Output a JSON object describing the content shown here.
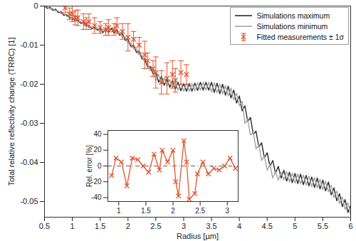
{
  "chart_data": [
    {
      "type": "line",
      "xlabel": "Radius [µm]",
      "ylabel": "Total relative reflectivity change (TRRC) [1]",
      "xlim": [
        0.5,
        6
      ],
      "xticks": [
        0.5,
        1,
        1.5,
        2,
        2.5,
        3,
        3.5,
        4,
        4.5,
        5,
        5.5,
        6
      ],
      "ylim": [
        -0.054,
        0
      ],
      "yticks": [
        -0.05,
        -0.04,
        -0.03,
        -0.02,
        -0.01,
        0
      ],
      "legend": "top-right",
      "x": [
        0.5,
        0.55,
        0.6,
        0.65,
        0.7,
        0.75,
        0.8,
        0.85,
        0.9,
        0.95,
        1.0,
        1.05,
        1.1,
        1.15,
        1.2,
        1.25,
        1.3,
        1.35,
        1.4,
        1.45,
        1.5,
        1.55,
        1.6,
        1.65,
        1.7,
        1.75,
        1.8,
        1.85,
        1.9,
        1.95,
        2.0,
        2.05,
        2.1,
        2.15,
        2.2,
        2.25,
        2.3,
        2.35,
        2.4,
        2.45,
        2.5,
        2.55,
        2.6,
        2.65,
        2.7,
        2.75,
        2.8,
        2.85,
        2.9,
        2.95,
        3.0,
        3.05,
        3.1,
        3.15,
        3.2,
        3.25,
        3.3,
        3.35,
        3.4,
        3.45,
        3.5,
        3.55,
        3.6,
        3.65,
        3.7,
        3.75,
        3.8,
        3.85,
        3.9,
        3.95,
        4.0,
        4.05,
        4.1,
        4.15,
        4.2,
        4.25,
        4.3,
        4.35,
        4.4,
        4.45,
        4.5,
        4.55,
        4.6,
        4.65,
        4.7,
        4.75,
        4.8,
        4.85,
        4.9,
        4.95,
        5.0,
        5.05,
        5.1,
        5.15,
        5.2,
        5.25,
        5.3,
        5.35,
        5.4,
        5.45,
        5.5,
        5.55,
        5.6,
        5.65,
        5.7,
        5.75,
        5.8,
        5.85,
        5.9,
        5.95,
        6.0
      ],
      "series": [
        {
          "name": "Simulations maximum",
          "type": "line",
          "color": "#2a2a2a",
          "values": [
            0,
            -0.0006,
            -0.0003,
            -0.0011,
            -0.0008,
            -0.0017,
            -0.0015,
            -0.0024,
            -0.0022,
            -0.0031,
            -0.003,
            -0.0038,
            -0.0036,
            -0.0044,
            -0.0042,
            -0.0051,
            -0.005,
            -0.0058,
            -0.0055,
            -0.0062,
            -0.0058,
            -0.0068,
            -0.0058,
            -0.0068,
            -0.0057,
            -0.0069,
            -0.006,
            -0.0075,
            -0.007,
            -0.0088,
            -0.0085,
            -0.0103,
            -0.01,
            -0.0118,
            -0.0115,
            -0.0135,
            -0.0135,
            -0.0155,
            -0.0155,
            -0.0173,
            -0.017,
            -0.0195,
            -0.018,
            -0.0203,
            -0.0185,
            -0.0208,
            -0.019,
            -0.0213,
            -0.0195,
            -0.0217,
            -0.0198,
            -0.0218,
            -0.0198,
            -0.0218,
            -0.0197,
            -0.0216,
            -0.0195,
            -0.0215,
            -0.0195,
            -0.0215,
            -0.0195,
            -0.0221,
            -0.0197,
            -0.0224,
            -0.02,
            -0.0228,
            -0.0205,
            -0.0235,
            -0.0215,
            -0.0248,
            -0.023,
            -0.0268,
            -0.0255,
            -0.0295,
            -0.0285,
            -0.0328,
            -0.032,
            -0.036,
            -0.035,
            -0.0388,
            -0.0375,
            -0.041,
            -0.0395,
            -0.0428,
            -0.041,
            -0.044,
            -0.042,
            -0.0448,
            -0.0425,
            -0.0452,
            -0.0428,
            -0.0454,
            -0.043,
            -0.0457,
            -0.0433,
            -0.046,
            -0.0437,
            -0.0464,
            -0.044,
            -0.0468,
            -0.0445,
            -0.0473,
            -0.045,
            -0.0483,
            -0.0465,
            -0.0498,
            -0.048,
            -0.0513,
            -0.0495,
            -0.0528,
            -0.051
          ]
        },
        {
          "name": "Simulations minimum",
          "type": "line",
          "color": "#a3a3a3",
          "values": [
            0,
            -0.0002,
            -0.0008,
            -0.0006,
            -0.0013,
            -0.0012,
            -0.002,
            -0.0019,
            -0.0027,
            -0.0026,
            -0.0035,
            -0.0033,
            -0.0041,
            -0.0039,
            -0.0047,
            -0.0046,
            -0.0055,
            -0.0053,
            -0.006,
            -0.0057,
            -0.0068,
            -0.0058,
            -0.0068,
            -0.0058,
            -0.0067,
            -0.0059,
            -0.007,
            -0.0065,
            -0.008,
            -0.0078,
            -0.0095,
            -0.0093,
            -0.011,
            -0.0108,
            -0.0125,
            -0.0125,
            -0.0145,
            -0.0145,
            -0.0165,
            -0.0163,
            -0.019,
            -0.0175,
            -0.02,
            -0.0183,
            -0.0205,
            -0.0188,
            -0.021,
            -0.0193,
            -0.0215,
            -0.0197,
            -0.0218,
            -0.0198,
            -0.0218,
            -0.0198,
            -0.0217,
            -0.0196,
            -0.0215,
            -0.0195,
            -0.0215,
            -0.0195,
            -0.022,
            -0.0196,
            -0.0222,
            -0.0199,
            -0.0225,
            -0.0203,
            -0.023,
            -0.021,
            -0.024,
            -0.0223,
            -0.0255,
            -0.0243,
            -0.03,
            -0.029,
            -0.033,
            -0.0323,
            -0.0365,
            -0.0355,
            -0.0395,
            -0.0383,
            -0.042,
            -0.0405,
            -0.044,
            -0.0423,
            -0.0445,
            -0.0425,
            -0.0445,
            -0.0423,
            -0.045,
            -0.0427,
            -0.0453,
            -0.0429,
            -0.0455,
            -0.0432,
            -0.0458,
            -0.0435,
            -0.0462,
            -0.0439,
            -0.0465,
            -0.0443,
            -0.047,
            -0.0448,
            -0.0475,
            -0.0458,
            -0.049,
            -0.0473,
            -0.0505,
            -0.0488,
            -0.052,
            -0.0503,
            -0.0535
          ]
        },
        {
          "name": "Fitted measurements ± 1σ",
          "type": "scatter",
          "marker": "x",
          "color": "#e2542c",
          "x": [
            0.87,
            0.95,
            1.0,
            1.05,
            1.1,
            1.2,
            1.25,
            1.3,
            1.4,
            1.5,
            1.6,
            1.65,
            1.75,
            1.8,
            1.9,
            2.0,
            2.1,
            2.2,
            2.3,
            2.35,
            2.45,
            2.5,
            2.6,
            2.7,
            2.8,
            2.85,
            2.95,
            3.05
          ],
          "values": [
            -0.0005,
            -0.002,
            -0.002,
            -0.003,
            -0.003,
            -0.004,
            -0.0045,
            -0.004,
            -0.005,
            -0.0055,
            -0.006,
            -0.0055,
            -0.006,
            -0.005,
            -0.0065,
            -0.008,
            -0.0085,
            -0.01,
            -0.0125,
            -0.014,
            -0.016,
            -0.017,
            -0.0195,
            -0.0185,
            -0.0175,
            -0.019,
            -0.017,
            -0.0175
          ],
          "error": [
            0.0012,
            0.0015,
            0.002,
            0.0018,
            0.002,
            0.002,
            0.0015,
            0.002,
            0.002,
            0.0015,
            0.0015,
            0.002,
            0.0015,
            0.002,
            0.002,
            0.0035,
            0.002,
            0.002,
            0.0035,
            0.002,
            0.002,
            0.004,
            0.003,
            0.004,
            0.0035,
            0.003,
            0.003,
            0.0025
          ]
        }
      ]
    },
    {
      "type": "line",
      "marker": "x",
      "color": "#e2542c",
      "line_style": "solid",
      "ylabel": "Rel. error [%]",
      "xlim": [
        0.8,
        3.2
      ],
      "xticks": [
        1,
        1.5,
        2,
        2.5,
        3
      ],
      "ylim": [
        -45,
        45
      ],
      "yticks": [
        -40,
        -20,
        0,
        20,
        40
      ],
      "x": [
        0.87,
        0.95,
        1.05,
        1.15,
        1.25,
        1.35,
        1.45,
        1.55,
        1.65,
        1.75,
        1.8,
        1.9,
        2.0,
        2.05,
        2.1,
        2.2,
        2.25,
        2.3,
        2.4,
        2.45,
        2.55,
        2.65,
        2.75,
        2.85,
        2.95,
        3.05,
        3.15
      ],
      "values": [
        -12,
        10,
        5,
        -25,
        10,
        8,
        0,
        -8,
        15,
        -5,
        20,
        5,
        20,
        -20,
        -38,
        32,
        5,
        -42,
        -35,
        -10,
        5,
        -10,
        -3,
        -5,
        0,
        10,
        -3
      ]
    }
  ]
}
